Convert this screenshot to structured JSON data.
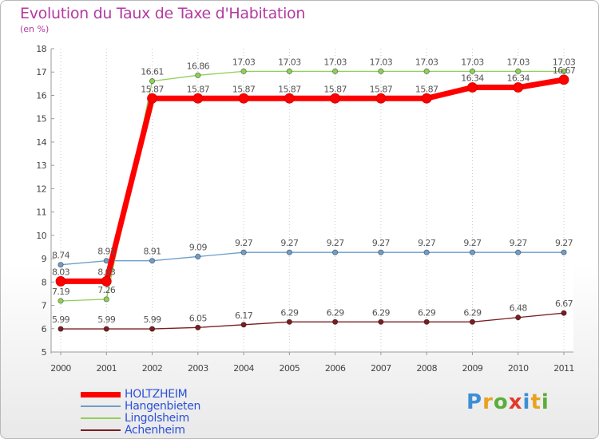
{
  "header": {
    "title": "Evolution du Taux de Taxe d'Habitation",
    "unit": "(en %)"
  },
  "logo": {
    "letters": [
      "P",
      "r",
      "o",
      "x",
      "i",
      "t",
      "i"
    ],
    "colors": [
      "#3c8fd6",
      "#e8a21f",
      "#5aae3a",
      "#e23a2a",
      "#3c8fd6",
      "#e8a21f",
      "#5aae3a"
    ]
  },
  "chart_data": {
    "type": "line",
    "title": "Evolution du Taux de Taxe d'Habitation",
    "ylabel": "(en %)",
    "xlabel": "",
    "ylim": [
      5,
      18
    ],
    "yticks": [
      5,
      6,
      7,
      8,
      9,
      10,
      11,
      12,
      13,
      14,
      15,
      16,
      17,
      18
    ],
    "ytick_labels": [
      "5",
      "6",
      "7",
      "8",
      "9",
      "10",
      "11",
      "12",
      "13",
      "14",
      "15",
      "16",
      "17",
      "18"
    ],
    "x": [
      "2000",
      "2001",
      "2002",
      "2003",
      "2004",
      "2005",
      "2006",
      "2007",
      "2008",
      "2009",
      "2010",
      "2011"
    ],
    "grid": true,
    "legend_position": "bottom-left",
    "series": [
      {
        "name": "Achenheim",
        "color": "#7a1e22",
        "values": [
          5.99,
          5.99,
          5.99,
          6.05,
          6.17,
          6.29,
          6.29,
          6.29,
          6.29,
          6.29,
          6.48,
          6.67
        ],
        "labels": [
          "5.99",
          "5.99",
          "5.99",
          "6.05",
          "6.17",
          "6.29",
          "6.29",
          "6.29",
          "6.29",
          "6.29",
          "6.48",
          "6.67"
        ]
      },
      {
        "name": "Hangenbieten",
        "color": "#6f9ec8",
        "values": [
          8.74,
          8.91,
          8.91,
          9.09,
          9.27,
          9.27,
          9.27,
          9.27,
          9.27,
          9.27,
          9.27,
          9.27
        ],
        "labels": [
          "8.74",
          "8.91",
          "8.91",
          "9.09",
          "9.27",
          "9.27",
          "9.27",
          "9.27",
          "9.27",
          "9.27",
          "9.27",
          "9.27"
        ]
      },
      {
        "name": "Lingolsheim",
        "color": "#8fd05a",
        "values": [
          7.19,
          7.26,
          16.61,
          16.86,
          17.03,
          17.03,
          17.03,
          17.03,
          17.03,
          17.03,
          17.03,
          17.03
        ],
        "labels": [
          "7.19",
          "7.26",
          "16.61",
          "16.86",
          "17.03",
          "17.03",
          "17.03",
          "17.03",
          "17.03",
          "17.03",
          "17.03",
          "17.03"
        ]
      },
      {
        "name": "HOLTZHEIM",
        "color": "#ff0000",
        "values": [
          8.03,
          8.03,
          15.87,
          15.87,
          15.87,
          15.87,
          15.87,
          15.87,
          15.87,
          16.34,
          16.34,
          16.67
        ],
        "labels": [
          "8.03",
          "8.03",
          "15.87",
          "15.87",
          "15.87",
          "15.87",
          "15.87",
          "15.87",
          "15.87",
          "16.34",
          "16.34",
          "16.67"
        ]
      }
    ],
    "legend_order": [
      "HOLTZHEIM",
      "Hangenbieten",
      "Lingolsheim",
      "Achenheim"
    ]
  }
}
